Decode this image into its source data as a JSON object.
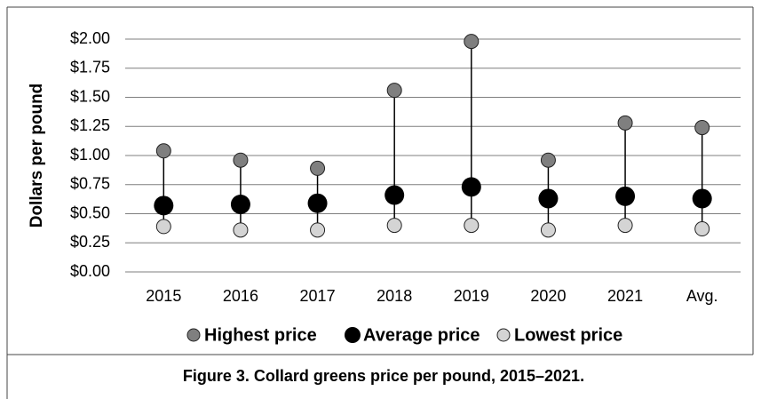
{
  "chart_data": {
    "type": "dot",
    "ylabel": "Dollars per pound",
    "caption": "Figure 3. Collard greens price per pound, 2015–2021.",
    "categories": [
      "2015",
      "2016",
      "2017",
      "2018",
      "2019",
      "2020",
      "2021",
      "Avg."
    ],
    "series": [
      {
        "name": "Highest price",
        "color": "#7f7f7f",
        "values": [
          1.04,
          0.96,
          0.89,
          1.56,
          1.98,
          0.96,
          1.28,
          1.24
        ]
      },
      {
        "name": "Average price",
        "color": "#000000",
        "values": [
          0.57,
          0.58,
          0.59,
          0.66,
          0.73,
          0.63,
          0.65,
          0.63
        ]
      },
      {
        "name": "Lowest price",
        "color": "#d4d4d4",
        "values": [
          0.39,
          0.36,
          0.36,
          0.4,
          0.4,
          0.36,
          0.4,
          0.37
        ]
      }
    ],
    "ylim": [
      0,
      2
    ],
    "yticks": [
      {
        "value": 0,
        "label": "$0.00"
      },
      {
        "value": 0.25,
        "label": "$0.25"
      },
      {
        "value": 0.5,
        "label": "$0.50"
      },
      {
        "value": 0.75,
        "label": "$0.75"
      },
      {
        "value": 1,
        "label": "$1.00"
      },
      {
        "value": 1.25,
        "label": "$1.25"
      },
      {
        "value": 1.5,
        "label": "$1.50"
      },
      {
        "value": 1.75,
        "label": "$1.75"
      },
      {
        "value": 2,
        "label": "$2.00"
      }
    ],
    "grid": true
  }
}
